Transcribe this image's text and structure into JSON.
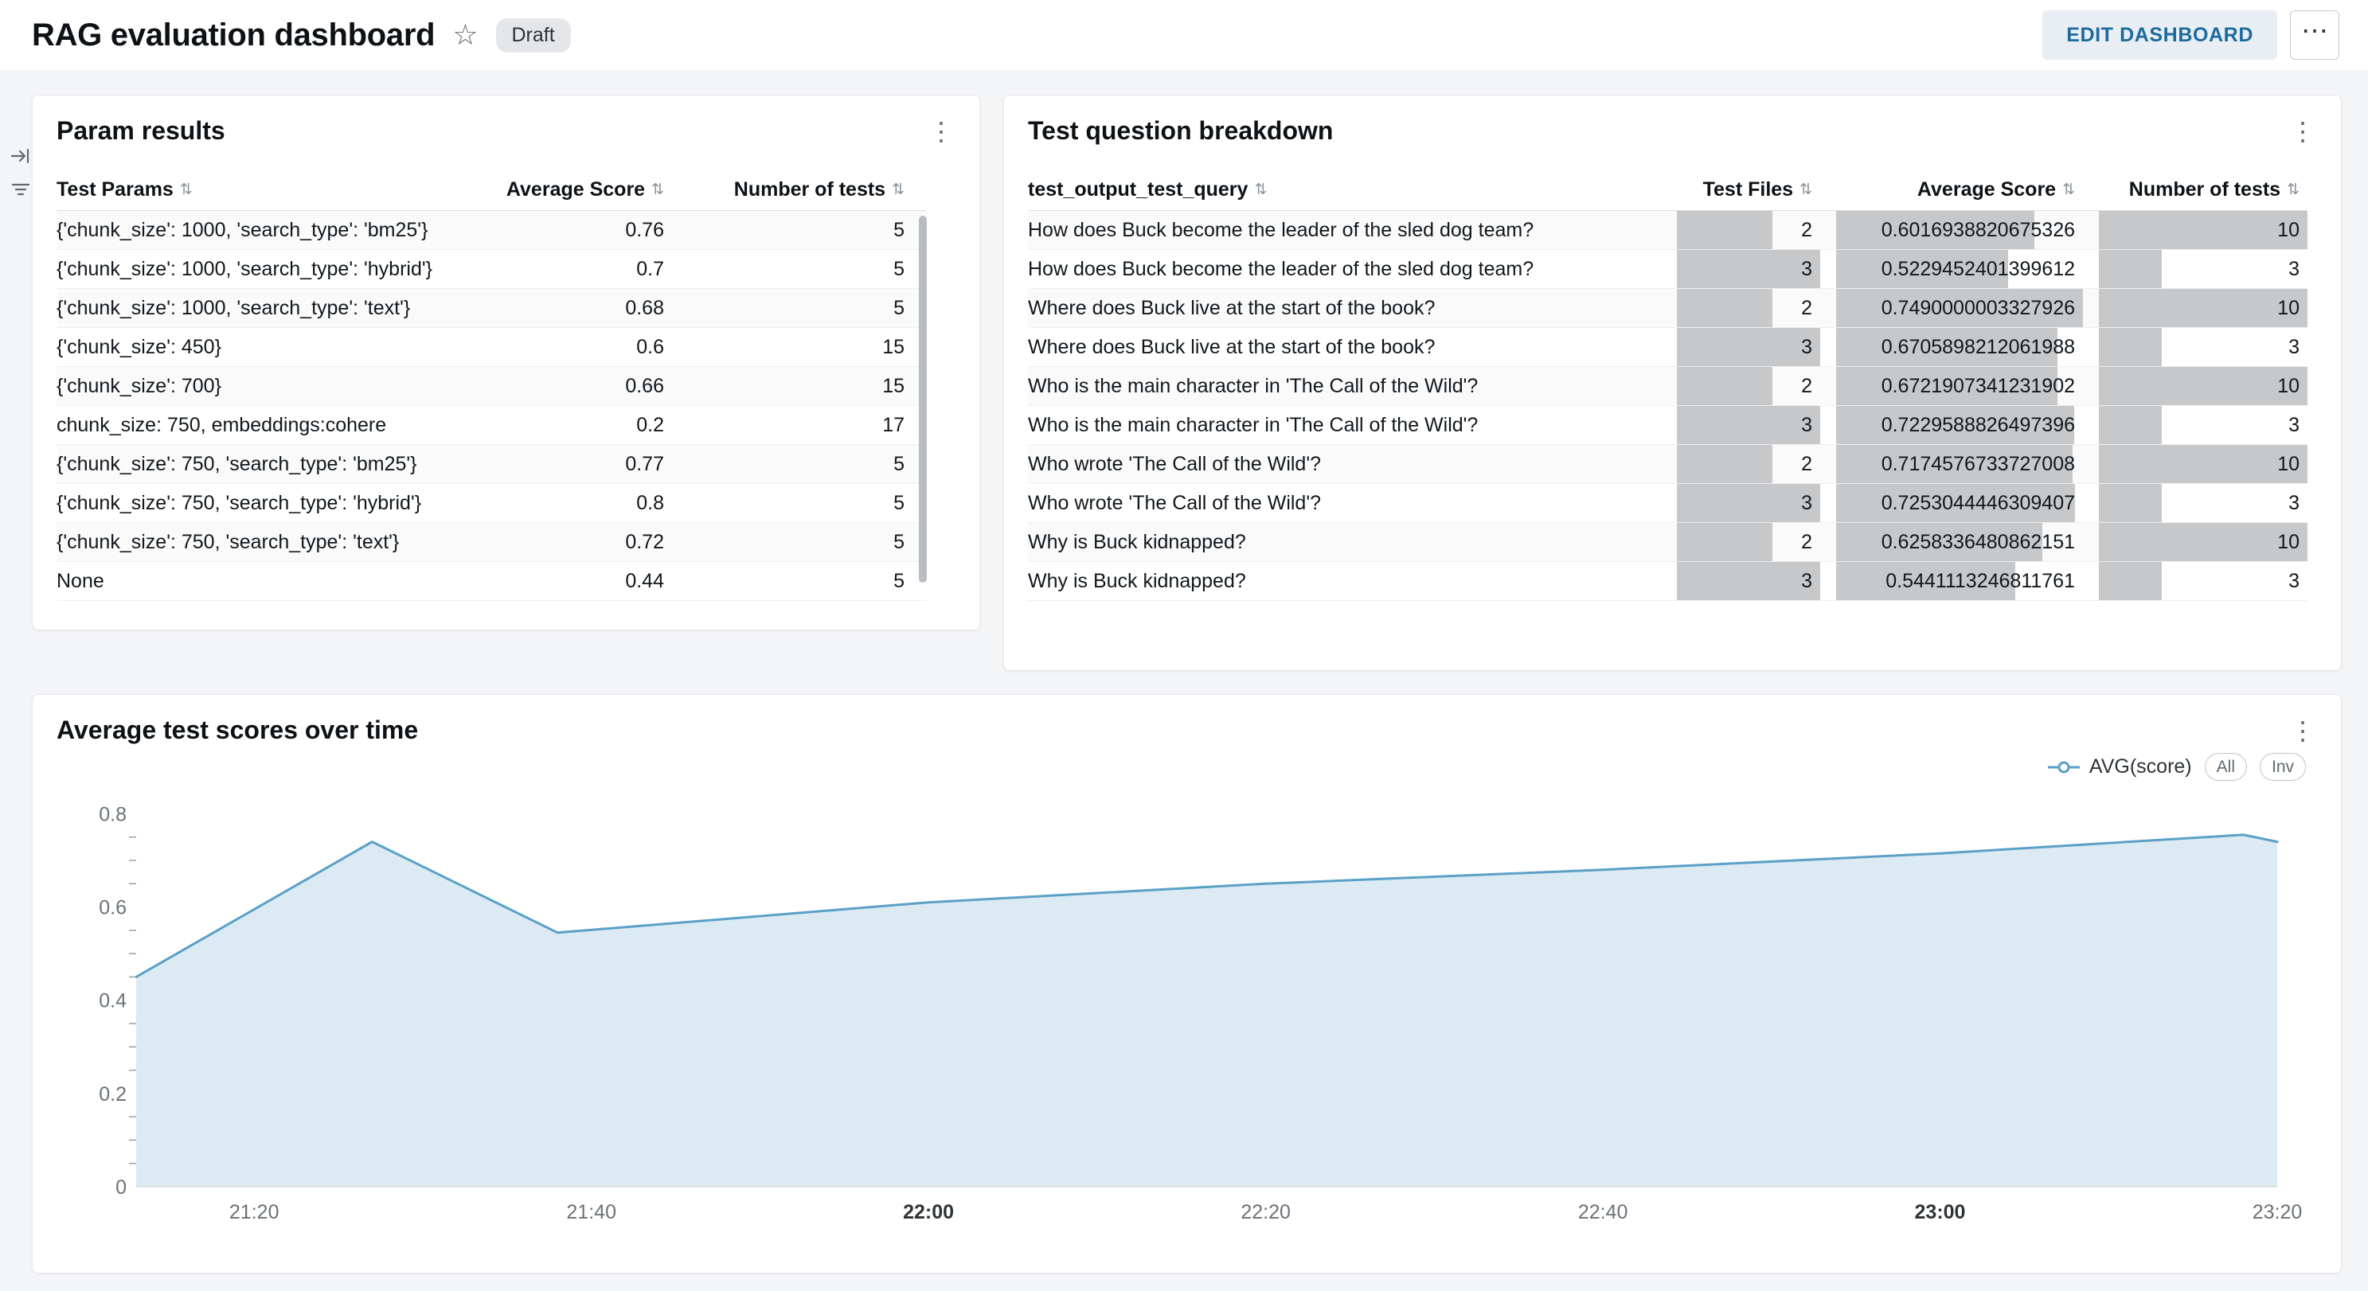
{
  "icons": {
    "star": "☆",
    "kebab": "⋮",
    "more": "⋯",
    "sort": "⇅"
  },
  "colors": {
    "accent": "#1d6a9c",
    "bar": "#c7c8ca",
    "chart_line": "#5ba0c7",
    "chart_fill": "#dceaf3"
  },
  "header": {
    "title": "RAG evaluation dashboard",
    "status_badge": "Draft",
    "edit_button": "EDIT DASHBOARD"
  },
  "cards": {
    "param_results": {
      "title": "Param results",
      "columns": [
        "Test Params",
        "Average Score",
        "Number of tests"
      ],
      "rows": [
        {
          "params": "{'chunk_size': 1000, 'search_type': 'bm25'}",
          "avg_score": "0.76",
          "num_tests": "5"
        },
        {
          "params": "{'chunk_size': 1000, 'search_type': 'hybrid'}",
          "avg_score": "0.7",
          "num_tests": "5"
        },
        {
          "params": "{'chunk_size': 1000, 'search_type': 'text'}",
          "avg_score": "0.68",
          "num_tests": "5"
        },
        {
          "params": "{'chunk_size': 450}",
          "avg_score": "0.6",
          "num_tests": "15"
        },
        {
          "params": "{'chunk_size': 700}",
          "avg_score": "0.66",
          "num_tests": "15"
        },
        {
          "params": "chunk_size: 750, embeddings:cohere",
          "avg_score": "0.2",
          "num_tests": "17"
        },
        {
          "params": "{'chunk_size': 750, 'search_type': 'bm25'}",
          "avg_score": "0.77",
          "num_tests": "5"
        },
        {
          "params": "{'chunk_size': 750, 'search_type': 'hybrid'}",
          "avg_score": "0.8",
          "num_tests": "5"
        },
        {
          "params": "{'chunk_size': 750, 'search_type': 'text'}",
          "avg_score": "0.72",
          "num_tests": "5"
        },
        {
          "params": "None",
          "avg_score": "0.44",
          "num_tests": "5"
        }
      ]
    },
    "question_breakdown": {
      "title": "Test question breakdown",
      "columns": [
        "test_output_test_query",
        "Test Files",
        "Average Score",
        "Number of tests"
      ],
      "rows": [
        {
          "query": "How does Buck become the leader of the sled dog team?",
          "test_files": 2,
          "avg_score": "0.6016938820675326",
          "num_tests": 10
        },
        {
          "query": "How does Buck become the leader of the sled dog team?",
          "test_files": 3,
          "avg_score": "0.5229452401399612",
          "num_tests": 3
        },
        {
          "query": "Where does Buck live at the start of the book?",
          "test_files": 2,
          "avg_score": "0.7490000003327926",
          "num_tests": 10
        },
        {
          "query": "Where does Buck live at the start of the book?",
          "test_files": 3,
          "avg_score": "0.6705898212061988",
          "num_tests": 3
        },
        {
          "query": "Who is the main character in 'The Call of the Wild'?",
          "test_files": 2,
          "avg_score": "0.6721907341231902",
          "num_tests": 10
        },
        {
          "query": "Who is the main character in 'The Call of the Wild'?",
          "test_files": 3,
          "avg_score": "0.7229588826497396",
          "num_tests": 3
        },
        {
          "query": "Who wrote 'The Call of the Wild'?",
          "test_files": 2,
          "avg_score": "0.7174576733727008",
          "num_tests": 10
        },
        {
          "query": "Who wrote 'The Call of the Wild'?",
          "test_files": 3,
          "avg_score": "0.7253044446309407",
          "num_tests": 3
        },
        {
          "query": "Why is Buck kidnapped?",
          "test_files": 2,
          "avg_score": "0.6258336480862151",
          "num_tests": 10
        },
        {
          "query": "Why is Buck kidnapped?",
          "test_files": 3,
          "avg_score": "0.5441113246811761",
          "num_tests": 3
        }
      ]
    },
    "scores_over_time": {
      "title": "Average test scores over time",
      "legend": {
        "series_label": "AVG(score)",
        "buttons": [
          "All",
          "Inv"
        ]
      },
      "chart_data": {
        "type": "area",
        "series": [
          {
            "name": "AVG(score)",
            "points": [
              [
                "21:13",
                0.45
              ],
              [
                "21:27",
                0.74
              ],
              [
                "21:38",
                0.545
              ],
              [
                "22:00",
                0.61
              ],
              [
                "22:20",
                0.65
              ],
              [
                "22:40",
                0.68
              ],
              [
                "23:00",
                0.715
              ],
              [
                "23:18",
                0.755
              ],
              [
                "23:20",
                0.74
              ]
            ]
          }
        ],
        "x_domain": [
          "21:13",
          "23:20"
        ],
        "x_ticks": [
          "21:20",
          "21:40",
          "22:00",
          "22:20",
          "22:40",
          "23:00",
          "23:20"
        ],
        "x_bold_ticks": [
          "22:00",
          "23:00"
        ],
        "y_ticks": [
          0,
          0.2,
          0.4,
          0.6,
          0.8
        ],
        "y_minor_step": 0.05,
        "ylim": [
          0,
          0.84
        ],
        "xlabel": "",
        "ylabel": "",
        "grid": false,
        "legend_position": "top-right"
      }
    }
  }
}
